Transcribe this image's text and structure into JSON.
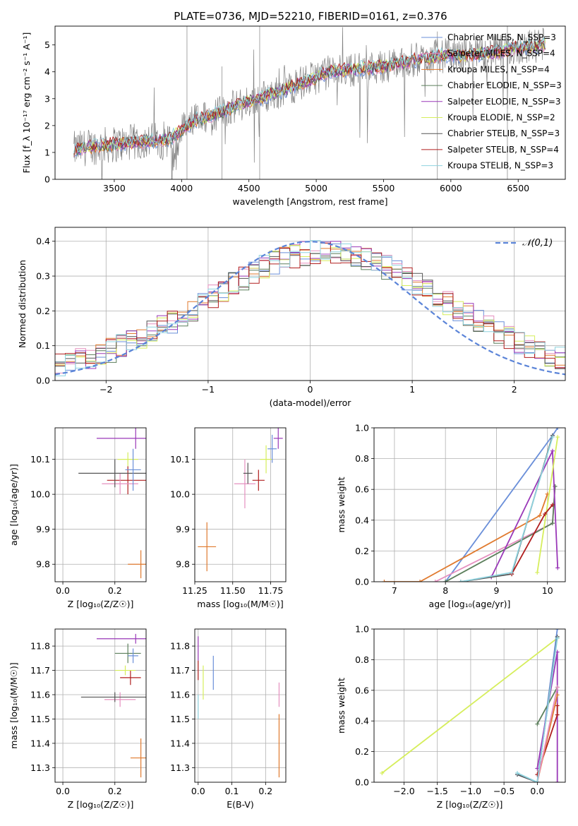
{
  "figure_title": "PLATE=0736, MJD=52210, FIBERID=0161, z=0.376",
  "colors": {
    "chabrier_miles": "#6a8fd9",
    "salpeter_miles": "#e58fbf",
    "kroupa_miles": "#e07a2e",
    "chabrier_elodie": "#5c7f5c",
    "salpeter_elodie": "#9a38b8",
    "kroupa_elodie": "#d6ee5c",
    "chabrier_stelib": "#555555",
    "salpeter_stelib": "#b01e1e",
    "kroupa_stelib": "#8fd3df",
    "data": "#808080",
    "gaussian": "#5b84d8"
  },
  "chart_data": [
    {
      "id": "spectrum",
      "type": "line",
      "xlabel": "wavelength [Angstrom, rest frame]",
      "ylabel": "Flux [f_λ 10⁻¹⁷ erg cm⁻² s⁻¹ A⁻¹]",
      "xlim": [
        3060,
        6850
      ],
      "ylim": [
        0,
        5.7
      ],
      "xticks": [
        "3500",
        "4000",
        "4500",
        "5000",
        "5500",
        "6000",
        "6500"
      ],
      "yticks": [
        "0",
        "1",
        "2",
        "3",
        "4",
        "5"
      ],
      "grid": false,
      "legend_position": "top-right",
      "series": [
        {
          "name": "Chabrier MILES, N_SSP=3",
          "color_key": "chabrier_miles"
        },
        {
          "name": "Salpeter MILES, N_SSP=4",
          "color_key": "salpeter_miles"
        },
        {
          "name": "Kroupa MILES, N_SSP=4",
          "color_key": "kroupa_miles"
        },
        {
          "name": "Chabrier ELODIE, N_SSP=3",
          "color_key": "chabrier_elodie"
        },
        {
          "name": "Salpeter ELODIE, N_SSP=3",
          "color_key": "salpeter_elodie"
        },
        {
          "name": "Kroupa ELODIE, N_SSP=2",
          "color_key": "kroupa_elodie"
        },
        {
          "name": "Chabrier STELIB, N_SSP=3",
          "color_key": "chabrier_stelib"
        },
        {
          "name": "Salpeter STELIB, N_SSP=4",
          "color_key": "salpeter_stelib"
        },
        {
          "name": "Kroupa STELIB, N_SSP=3",
          "color_key": "kroupa_stelib"
        }
      ],
      "continuum": {
        "wavelength": [
          3200,
          3300,
          3500,
          3700,
          3900,
          4000,
          4100,
          4300,
          4500,
          4700,
          4900,
          5100,
          5300,
          5500,
          5700,
          5900,
          6100,
          6300,
          6500,
          6700
        ],
        "flux": [
          1.1,
          1.2,
          1.3,
          1.4,
          1.5,
          1.8,
          2.2,
          2.5,
          2.9,
          3.2,
          3.6,
          4.0,
          4.1,
          4.2,
          4.4,
          4.6,
          4.6,
          4.7,
          4.9,
          5.0
        ]
      }
    },
    {
      "id": "residual_hist",
      "type": "line",
      "xlabel": "(data-model)/error",
      "ylabel": "Normed distribution",
      "xlim": [
        -2.5,
        2.5
      ],
      "ylim": [
        0,
        0.44
      ],
      "xticks": [
        "−2",
        "−1",
        "0",
        "1",
        "2"
      ],
      "yticks": [
        "0.0",
        "0.1",
        "0.2",
        "0.3",
        "0.4"
      ],
      "grid": true,
      "legend_position": "top-right",
      "gaussian_label": "𝒩(0,1)",
      "bin_width": 0.1,
      "bins_start": -2.5
    },
    {
      "id": "age_vs_Z",
      "type": "scatter",
      "xlabel": "Z [log₁₀(Z/Z☉)]",
      "ylabel": "age  [log₁₀(age/yr)]",
      "xlim": [
        -0.03,
        0.32
      ],
      "ylim": [
        9.75,
        10.19
      ],
      "xticks": [
        "0.0",
        "0.2"
      ],
      "yticks": [
        "9.8",
        "9.9",
        "10.0",
        "10.1"
      ],
      "grid": true,
      "points": [
        {
          "x": 0.3,
          "y": 9.8,
          "xerr": 0.05,
          "yerr": 0.04,
          "color_key": "kroupa_miles"
        },
        {
          "x": 0.25,
          "y": 10.04,
          "xerr": 0.08,
          "yerr": 0.04,
          "color_key": "salpeter_stelib"
        },
        {
          "x": 0.22,
          "y": 10.03,
          "xerr": 0.07,
          "yerr": 0.03,
          "color_key": "salpeter_miles"
        },
        {
          "x": 0.2,
          "y": 10.06,
          "xerr": 0.14,
          "yerr": 0.04,
          "color_key": "chabrier_stelib"
        },
        {
          "x": 0.28,
          "y": 10.16,
          "xerr": 0.15,
          "yerr": 0.03,
          "color_key": "salpeter_elodie"
        },
        {
          "x": 0.25,
          "y": 10.1,
          "xerr": 0.04,
          "yerr": 0.02,
          "color_key": "kroupa_elodie"
        },
        {
          "x": 0.27,
          "y": 10.07,
          "xerr": 0.03,
          "yerr": 0.06,
          "color_key": "chabrier_miles"
        }
      ]
    },
    {
      "id": "age_vs_mass",
      "type": "scatter",
      "xlabel": "mass [log₁₀(M/M☉)]",
      "ylabel": "",
      "xlim": [
        11.25,
        11.85
      ],
      "ylim": [
        9.75,
        10.19
      ],
      "xticks": [
        "11.25",
        "11.50",
        "11.75"
      ],
      "yticks": [
        "9.8",
        "9.9",
        "10.0",
        "10.1"
      ],
      "grid": true,
      "points": [
        {
          "x": 11.33,
          "y": 9.85,
          "xerr": 0.06,
          "yerr": 0.07,
          "color_key": "kroupa_miles"
        },
        {
          "x": 11.58,
          "y": 10.03,
          "xerr": 0.07,
          "yerr": 0.07,
          "color_key": "salpeter_miles"
        },
        {
          "x": 11.67,
          "y": 10.04,
          "xerr": 0.04,
          "yerr": 0.03,
          "color_key": "salpeter_stelib"
        },
        {
          "x": 11.6,
          "y": 10.06,
          "xerr": 0.03,
          "yerr": 0.03,
          "color_key": "chabrier_stelib"
        },
        {
          "x": 11.72,
          "y": 10.1,
          "xerr": 0.04,
          "yerr": 0.04,
          "color_key": "kroupa_elodie"
        },
        {
          "x": 11.8,
          "y": 10.16,
          "xerr": 0.03,
          "yerr": 0.03,
          "color_key": "salpeter_elodie"
        },
        {
          "x": 11.76,
          "y": 10.13,
          "xerr": 0.03,
          "yerr": 0.04,
          "color_key": "chabrier_miles"
        }
      ]
    },
    {
      "id": "weight_vs_age",
      "type": "line",
      "xlabel": "age  [log₁₀(age/yr)]",
      "ylabel": "mass weight",
      "xlim": [
        6.6,
        10.35
      ],
      "ylim": [
        0,
        1.0
      ],
      "xticks": [
        "7",
        "8",
        "9",
        "10"
      ],
      "yticks": [
        "0.0",
        "0.2",
        "0.4",
        "0.6",
        "0.8",
        "1.0"
      ],
      "grid": true,
      "series": [
        {
          "color_key": "chabrier_miles",
          "x": [
            8.0,
            10.1,
            10.2
          ],
          "y": [
            0.0,
            0.95,
            1.0
          ]
        },
        {
          "color_key": "kroupa_miles",
          "x": [
            6.8,
            7.5,
            9.85,
            10.0
          ],
          "y": [
            0.0,
            0.0,
            0.43,
            0.57
          ]
        },
        {
          "color_key": "salpeter_miles",
          "x": [
            7.8,
            10.1,
            10.15
          ],
          "y": [
            0.0,
            0.38,
            0.62
          ]
        },
        {
          "color_key": "chabrier_elodie",
          "x": [
            8.0,
            10.1,
            10.15
          ],
          "y": [
            0.0,
            0.38,
            0.62
          ]
        },
        {
          "color_key": "salpeter_elodie",
          "x": [
            8.9,
            10.1,
            10.2
          ],
          "y": [
            0.03,
            0.85,
            0.09
          ]
        },
        {
          "color_key": "kroupa_elodie",
          "x": [
            9.8,
            10.2
          ],
          "y": [
            0.06,
            0.94
          ]
        },
        {
          "color_key": "chabrier_stelib",
          "x": [
            8.3,
            9.3,
            10.1
          ],
          "y": [
            0.0,
            0.05,
            0.95
          ]
        },
        {
          "color_key": "salpeter_stelib",
          "x": [
            9.3,
            9.95,
            10.1
          ],
          "y": [
            0.05,
            0.44,
            0.5
          ]
        },
        {
          "color_key": "kroupa_stelib",
          "x": [
            8.3,
            9.3,
            10.1
          ],
          "y": [
            0.0,
            0.06,
            0.94
          ]
        }
      ]
    },
    {
      "id": "mass_vs_Z",
      "type": "scatter",
      "xlabel": "Z [log₁₀(Z/Z☉)]",
      "ylabel": "mass [log₁₀(M/M☉)]",
      "xlim": [
        -0.03,
        0.32
      ],
      "ylim": [
        11.24,
        11.87
      ],
      "xticks": [
        "0.0",
        "0.2"
      ],
      "yticks": [
        "11.3",
        "11.4",
        "11.5",
        "11.6",
        "11.7",
        "11.8"
      ],
      "grid": true,
      "points": [
        {
          "x": 0.3,
          "y": 11.34,
          "xerr": 0.04,
          "yerr": 0.08,
          "color_key": "kroupa_miles"
        },
        {
          "x": 0.22,
          "y": 11.58,
          "xerr": 0.06,
          "yerr": 0.03,
          "color_key": "salpeter_miles"
        },
        {
          "x": 0.2,
          "y": 11.59,
          "xerr": 0.13,
          "yerr": 0.02,
          "color_key": "chabrier_stelib"
        },
        {
          "x": 0.26,
          "y": 11.67,
          "xerr": 0.04,
          "yerr": 0.03,
          "color_key": "salpeter_stelib"
        },
        {
          "x": 0.24,
          "y": 11.7,
          "xerr": 0.04,
          "yerr": 0.02,
          "color_key": "kroupa_elodie"
        },
        {
          "x": 0.28,
          "y": 11.83,
          "xerr": 0.15,
          "yerr": 0.02,
          "color_key": "salpeter_elodie"
        },
        {
          "x": 0.25,
          "y": 11.77,
          "xerr": 0.05,
          "yerr": 0.04,
          "color_key": "chabrier_elodie"
        },
        {
          "x": 0.27,
          "y": 11.76,
          "xerr": 0.02,
          "yerr": 0.03,
          "color_key": "chabrier_miles"
        }
      ]
    },
    {
      "id": "mass_vs_EBV",
      "type": "scatter",
      "xlabel": "E(B-V)",
      "ylabel": "",
      "xlim": [
        -0.01,
        0.26
      ],
      "ylim": [
        11.24,
        11.87
      ],
      "xticks": [
        "0.0",
        "0.1",
        "0.2"
      ],
      "yticks": [
        "11.3",
        "11.4",
        "11.5",
        "11.6",
        "11.7",
        "11.8"
      ],
      "grid": true,
      "points": [
        {
          "x": 0.24,
          "y": 11.39,
          "xerr": 0.0,
          "yerr": 0.13,
          "color_key": "kroupa_miles"
        },
        {
          "x": 0.24,
          "y": 11.6,
          "xerr": 0.0,
          "yerr": 0.05,
          "color_key": "salpeter_miles"
        },
        {
          "x": 0.045,
          "y": 11.69,
          "xerr": 0.0,
          "yerr": 0.07,
          "color_key": "chabrier_miles"
        },
        {
          "x": 0.0,
          "y": 11.79,
          "xerr": 0.0,
          "yerr": 0.05,
          "color_key": "salpeter_elodie"
        },
        {
          "x": 0.015,
          "y": 11.65,
          "xerr": 0.0,
          "yerr": 0.07,
          "color_key": "kroupa_elodie"
        },
        {
          "x": 0.0,
          "y": 11.55,
          "xerr": 0.0,
          "yerr": 0.05,
          "color_key": "kroupa_stelib"
        },
        {
          "x": 0.0,
          "y": 11.7,
          "xerr": 0.0,
          "yerr": 0.04,
          "color_key": "salpeter_stelib"
        }
      ]
    },
    {
      "id": "weight_vs_Z",
      "type": "line",
      "xlabel": "Z [log₁₀(Z/Z☉)]",
      "ylabel": "mass weight",
      "xlim": [
        -2.45,
        0.42
      ],
      "ylim": [
        0,
        1.0
      ],
      "xticks": [
        "−2.0",
        "−1.5",
        "−1.0",
        "−0.5",
        "0.0"
      ],
      "yticks": [
        "0.0",
        "0.2",
        "0.4",
        "0.6",
        "0.8",
        "1.0"
      ],
      "grid": true,
      "series": [
        {
          "color_key": "kroupa_elodie",
          "x": [
            -2.33,
            0.3
          ],
          "y": [
            0.06,
            0.94
          ]
        },
        {
          "color_key": "chabrier_miles",
          "x": [
            -0.3,
            0.0,
            0.3
          ],
          "y": [
            0.05,
            0.0,
            1.0
          ]
        },
        {
          "color_key": "chabrier_stelib",
          "x": [
            -0.3,
            0.0,
            0.3
          ],
          "y": [
            0.05,
            0.0,
            0.95
          ]
        },
        {
          "color_key": "salpeter_elodie",
          "x": [
            0.0,
            0.3,
            0.3
          ],
          "y": [
            0.09,
            0.85,
            0.0
          ]
        },
        {
          "color_key": "chabrier_elodie",
          "x": [
            0.0,
            0.3
          ],
          "y": [
            0.38,
            0.62
          ]
        },
        {
          "color_key": "salpeter_stelib",
          "x": [
            0.0,
            0.3,
            0.3
          ],
          "y": [
            0.05,
            0.44,
            0.5
          ]
        },
        {
          "color_key": "kroupa_miles",
          "x": [
            0.0,
            0.3
          ],
          "y": [
            0.0,
            0.57
          ]
        },
        {
          "color_key": "salpeter_miles",
          "x": [
            0.0,
            0.3
          ],
          "y": [
            0.0,
            0.62
          ]
        },
        {
          "color_key": "kroupa_stelib",
          "x": [
            -0.3,
            0.0,
            0.3
          ],
          "y": [
            0.06,
            0.0,
            0.94
          ]
        }
      ]
    }
  ]
}
